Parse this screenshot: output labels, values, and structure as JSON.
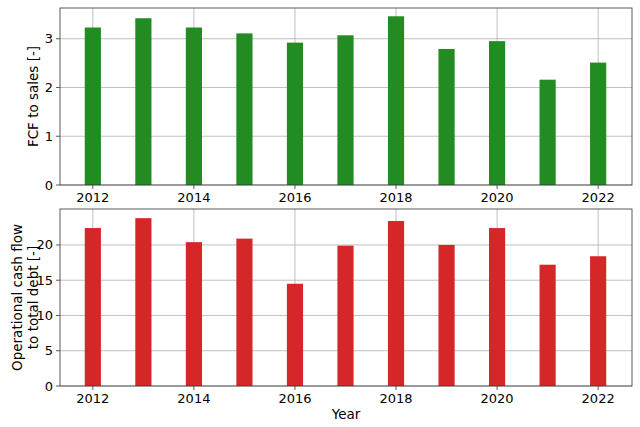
{
  "chart_data": [
    {
      "type": "bar",
      "y_label": "FCF to sales [-]",
      "x": [
        2012,
        2013,
        2014,
        2015,
        2016,
        2017,
        2018,
        2019,
        2020,
        2021,
        2022
      ],
      "values": [
        3.23,
        3.42,
        3.23,
        3.11,
        2.92,
        3.07,
        3.46,
        2.79,
        2.95,
        2.16,
        2.51
      ],
      "color": "#228b22",
      "xlim": [
        2011.35,
        2022.67
      ],
      "xticks": [
        2012,
        2014,
        2016,
        2018,
        2020,
        2022
      ],
      "ylim": [
        0,
        3.63
      ],
      "yticks": [
        0,
        1,
        2,
        3
      ],
      "grid": true
    },
    {
      "type": "bar",
      "x_label": "Year",
      "y_label": "Operational cash flow\nto total debt [-]",
      "x": [
        2012,
        2013,
        2014,
        2015,
        2016,
        2017,
        2018,
        2019,
        2020,
        2021,
        2022
      ],
      "values": [
        22.4,
        23.8,
        20.4,
        20.9,
        14.5,
        19.9,
        23.4,
        20.0,
        22.4,
        17.2,
        18.4
      ],
      "color": "#d62728",
      "xlim": [
        2011.35,
        2022.67
      ],
      "xticks": [
        2012,
        2014,
        2016,
        2018,
        2020,
        2022
      ],
      "ylim": [
        0,
        25.1
      ],
      "yticks": [
        0,
        5,
        10,
        15,
        20
      ],
      "grid": true
    }
  ]
}
